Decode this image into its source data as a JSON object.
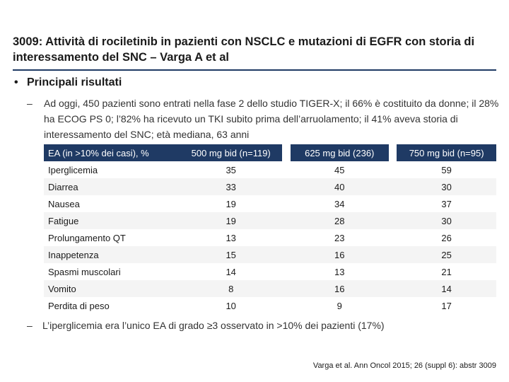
{
  "slide": {
    "title": "3009: Attività di rociletinib in pazienti con NSCLC e mutazioni di EGFR con storia di interessamento del SNC – Varga A et al",
    "bullet_marker": "•",
    "bullet": "Principali risultati",
    "sub_marker": "–",
    "summary": "Ad oggi, 450 pazienti sono entrati nella fase 2 dello studio TIGER-X; il 66% è costituito da donne; il 28% ha ECOG PS 0; l’82% ha ricevuto un TKI subito prima dell’arruolamento; il 41% aveva storia di interessamento del SNC; età mediana, 63 anni",
    "note": "L’iperglicemia era l’unico EA di grado ≥3 osservato in >10% dei pazienti (17%)",
    "reference": "Varga et al. Ann Oncol 2015; 26 (suppl 6): abstr 3009"
  },
  "table": {
    "headers": [
      "EA (in >10% dei casi), %",
      "500 mg bid (n=119)",
      "625 mg bid (236)",
      "750 mg bid (n=95)"
    ],
    "rows": [
      [
        "Iperglicemia",
        "35",
        "45",
        "59"
      ],
      [
        "Diarrea",
        "33",
        "40",
        "30"
      ],
      [
        "Nausea",
        "19",
        "34",
        "37"
      ],
      [
        "Fatigue",
        "19",
        "28",
        "30"
      ],
      [
        "Prolungamento QT",
        "13",
        "23",
        "26"
      ],
      [
        "Inappetenza",
        "15",
        "16",
        "25"
      ],
      [
        "Spasmi muscolari",
        "14",
        "13",
        "21"
      ],
      [
        "Vomito",
        "8",
        "16",
        "14"
      ],
      [
        "Perdita di peso",
        "10",
        "9",
        "17"
      ]
    ]
  },
  "colors": {
    "header_bg": "#1f3a64",
    "header_text": "#ffffff",
    "rule": "#1f3a64"
  }
}
